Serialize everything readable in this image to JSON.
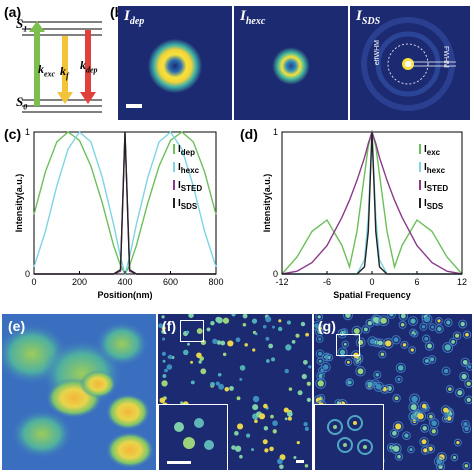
{
  "panel_a": {
    "label": "(a)",
    "s1": "S",
    "s1_sub": "1",
    "s0": "S",
    "s0_sub": "0",
    "k_exc": "k",
    "k_exc_sub": "exc",
    "k_f": "k",
    "k_f_sub": "f",
    "k_dep": "k",
    "k_dep_sub": "dep"
  },
  "panel_b": {
    "label": "(b)",
    "img1_title": "I",
    "img1_sub": "dep",
    "img2_title": "I",
    "img2_sub": "hexc",
    "img3_title": "I",
    "img3_sub": "SDS",
    "fwhm": "FWHM",
    "effwhm": "effWHM"
  },
  "panel_c": {
    "label": "(c)",
    "ylabel": "Intensity(a.u.)",
    "xlabel": "Position(nm)"
  },
  "panel_d": {
    "label": "(d)",
    "ylabel": "Intensity(a.u.)",
    "xlabel": "Spatial Frequency"
  },
  "panel_e": {
    "label": "(e)"
  },
  "panel_f": {
    "label": "(f)"
  },
  "panel_g": {
    "label": "(g)"
  },
  "chart_data": [
    {
      "type": "line",
      "xlabel": "Position(nm)",
      "ylabel": "Intensity(a.u.)",
      "xlim": [
        0,
        800
      ],
      "ylim": [
        0,
        1
      ],
      "xticks": [
        "0",
        "200",
        "400",
        "600",
        "800"
      ],
      "yticks": [
        "0",
        "1"
      ],
      "legend_position": "right",
      "x": [
        0,
        50,
        100,
        150,
        200,
        250,
        300,
        350,
        380,
        400,
        420,
        450,
        500,
        550,
        600,
        650,
        700,
        750,
        800
      ],
      "series": [
        {
          "name": "I",
          "sub": "dep",
          "color": "#6dbf5a",
          "values": [
            0.42,
            0.72,
            0.93,
            1.0,
            0.94,
            0.76,
            0.5,
            0.2,
            0.06,
            0.0,
            0.06,
            0.2,
            0.5,
            0.76,
            0.94,
            1.0,
            0.93,
            0.72,
            0.42
          ]
        },
        {
          "name": "I",
          "sub": "hexc",
          "color": "#7fd4e3",
          "values": [
            0.05,
            0.3,
            0.62,
            0.88,
            1.0,
            0.93,
            0.68,
            0.35,
            0.12,
            0.0,
            0.12,
            0.35,
            0.68,
            0.93,
            1.0,
            0.88,
            0.62,
            0.3,
            0.05
          ]
        },
        {
          "name": "I",
          "sub": "STED",
          "color": "#8a3a8a",
          "values": [
            0,
            0,
            0,
            0,
            0,
            0,
            0,
            0,
            0.02,
            1.0,
            0.02,
            0,
            0,
            0,
            0,
            0,
            0,
            0,
            0
          ]
        },
        {
          "name": "I",
          "sub": "SDS",
          "color": "#222222",
          "values": [
            0,
            0,
            0,
            0,
            0,
            0,
            0,
            0,
            0.03,
            1.0,
            0.03,
            0,
            0,
            0,
            0,
            0,
            0,
            0,
            0
          ]
        }
      ]
    },
    {
      "type": "line",
      "xlabel": "Spatial Frequency",
      "ylabel": "Intensity(a.u.)",
      "xlim": [
        -12,
        12
      ],
      "ylim": [
        0,
        1
      ],
      "xticks": [
        "-12",
        "-6",
        "0",
        "6",
        "12"
      ],
      "yticks": [
        "0",
        "1"
      ],
      "legend_position": "right",
      "x": [
        -12,
        -10,
        -8,
        -6,
        -4,
        -3,
        -2,
        -1,
        -0.5,
        0,
        0.5,
        1,
        2,
        3,
        4,
        6,
        8,
        10,
        12
      ],
      "series": [
        {
          "name": "I",
          "sub": "exc",
          "color": "#6dbf5a",
          "values": [
            0.0,
            0.12,
            0.3,
            0.38,
            0.2,
            0.05,
            0.3,
            0.7,
            0.9,
            1.0,
            0.9,
            0.7,
            0.3,
            0.05,
            0.2,
            0.38,
            0.3,
            0.12,
            0.0
          ]
        },
        {
          "name": "I",
          "sub": "hexc",
          "color": "#7fd4e3",
          "values": [
            0,
            0,
            0,
            0,
            0,
            0,
            0,
            0.1,
            0.4,
            1.0,
            0.4,
            0.1,
            0,
            0,
            0,
            0,
            0,
            0,
            0
          ]
        },
        {
          "name": "I",
          "sub": "STED",
          "color": "#8a3a8a",
          "values": [
            0.0,
            0.02,
            0.08,
            0.2,
            0.4,
            0.52,
            0.66,
            0.82,
            0.92,
            1.0,
            0.92,
            0.82,
            0.66,
            0.52,
            0.4,
            0.2,
            0.08,
            0.02,
            0.0
          ]
        },
        {
          "name": "I",
          "sub": "SDS",
          "color": "#222222",
          "values": [
            0,
            0,
            0,
            0,
            0,
            0,
            0,
            0.05,
            0.3,
            1.0,
            0.3,
            0.05,
            0,
            0,
            0,
            0,
            0,
            0,
            0
          ]
        }
      ]
    }
  ]
}
